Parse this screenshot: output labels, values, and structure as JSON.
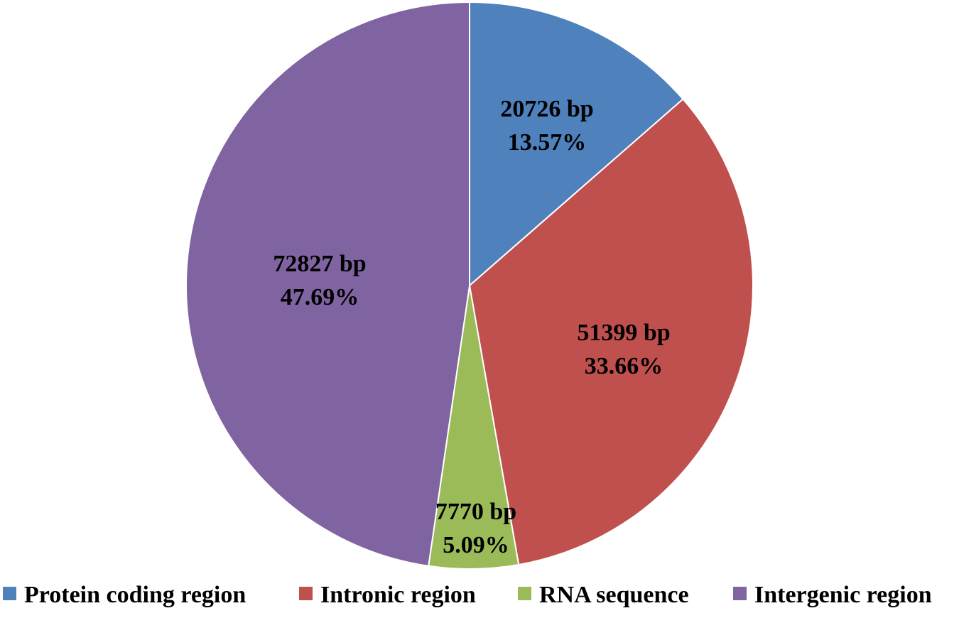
{
  "chart_data": {
    "type": "pie",
    "title": "",
    "legend_position": "bottom",
    "slices": [
      {
        "name": "Protein coding region",
        "value": 20726,
        "value_label": "20726 bp",
        "percent_label": "13.57%",
        "color": "#4F81BD"
      },
      {
        "name": "Intronic region",
        "value": 51399,
        "value_label": "51399 bp",
        "percent_label": "33.66%",
        "color": "#C0504D"
      },
      {
        "name": "RNA sequence",
        "value": 7770,
        "value_label": "7770 bp",
        "percent_label": "5.09%",
        "color": "#9BBB59"
      },
      {
        "name": "Intergenic region",
        "value": 72827,
        "value_label": "72827 bp",
        "percent_label": "47.69%",
        "color": "#8064A2"
      }
    ]
  }
}
